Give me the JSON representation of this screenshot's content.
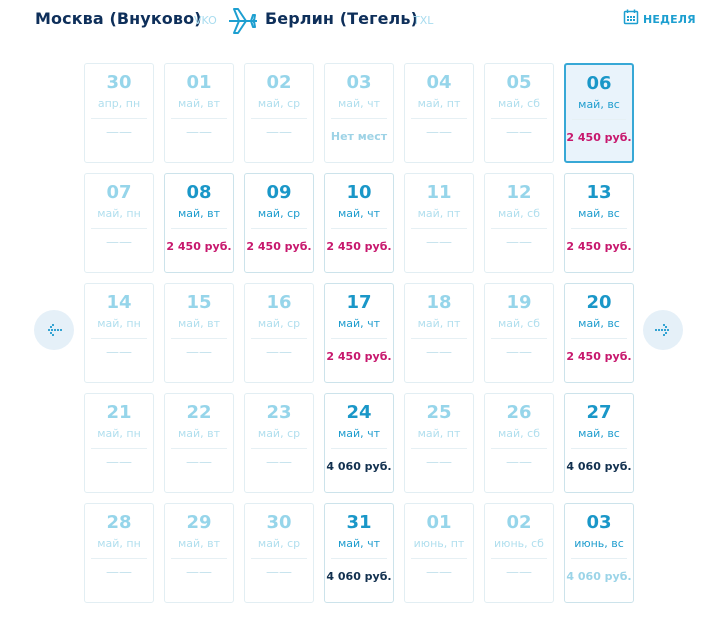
{
  "header": {
    "origin_city": "Москва (Внуково)",
    "origin_code": "VKO",
    "destination_city": "Берлин (Тегель)",
    "destination_code": "TXL",
    "week_label": "НЕДЕЛЯ"
  },
  "colors": {
    "price_available": "#c7176d",
    "price_regular": "#12304f",
    "accent": "#1d9fd0",
    "selected_border": "#37a8d6"
  },
  "rows": [
    [
      {
        "day": "30",
        "sub": "апр, пн",
        "price": "——",
        "state": "dash"
      },
      {
        "day": "01",
        "sub": "май, вт",
        "price": "——",
        "state": "dash"
      },
      {
        "day": "02",
        "sub": "май, ср",
        "price": "——",
        "state": "dash"
      },
      {
        "day": "03",
        "sub": "май, чт",
        "price": "Нет мест",
        "state": "none"
      },
      {
        "day": "04",
        "sub": "май, пт",
        "price": "——",
        "state": "dash"
      },
      {
        "day": "05",
        "sub": "май, сб",
        "price": "——",
        "state": "dash"
      },
      {
        "day": "06",
        "sub": "май, вс",
        "price": "2 450 руб.",
        "state": "red",
        "selected": true
      }
    ],
    [
      {
        "day": "07",
        "sub": "май, пн",
        "price": "——",
        "state": "dash"
      },
      {
        "day": "08",
        "sub": "май, вт",
        "price": "2 450 руб.",
        "state": "red"
      },
      {
        "day": "09",
        "sub": "май, ср",
        "price": "2 450 руб.",
        "state": "red"
      },
      {
        "day": "10",
        "sub": "май, чт",
        "price": "2 450 руб.",
        "state": "red"
      },
      {
        "day": "11",
        "sub": "май, пт",
        "price": "——",
        "state": "dash"
      },
      {
        "day": "12",
        "sub": "май, сб",
        "price": "——",
        "state": "dash"
      },
      {
        "day": "13",
        "sub": "май, вс",
        "price": "2 450 руб.",
        "state": "red"
      }
    ],
    [
      {
        "day": "14",
        "sub": "май, пн",
        "price": "——",
        "state": "dash"
      },
      {
        "day": "15",
        "sub": "май, вт",
        "price": "——",
        "state": "dash"
      },
      {
        "day": "16",
        "sub": "май, ср",
        "price": "——",
        "state": "dash"
      },
      {
        "day": "17",
        "sub": "май, чт",
        "price": "2 450 руб.",
        "state": "red"
      },
      {
        "day": "18",
        "sub": "май, пт",
        "price": "——",
        "state": "dash"
      },
      {
        "day": "19",
        "sub": "май, сб",
        "price": "——",
        "state": "dash"
      },
      {
        "day": "20",
        "sub": "май, вс",
        "price": "2 450 руб.",
        "state": "red"
      }
    ],
    [
      {
        "day": "21",
        "sub": "май, пн",
        "price": "——",
        "state": "dash"
      },
      {
        "day": "22",
        "sub": "май, вт",
        "price": "——",
        "state": "dash"
      },
      {
        "day": "23",
        "sub": "май, ср",
        "price": "——",
        "state": "dash"
      },
      {
        "day": "24",
        "sub": "май, чт",
        "price": "4 060 руб.",
        "state": "dark"
      },
      {
        "day": "25",
        "sub": "май, пт",
        "price": "——",
        "state": "dash"
      },
      {
        "day": "26",
        "sub": "май, сб",
        "price": "——",
        "state": "dash"
      },
      {
        "day": "27",
        "sub": "май, вс",
        "price": "4 060 руб.",
        "state": "dark"
      }
    ],
    [
      {
        "day": "28",
        "sub": "май, пн",
        "price": "——",
        "state": "dash"
      },
      {
        "day": "29",
        "sub": "май, вт",
        "price": "——",
        "state": "dash"
      },
      {
        "day": "30",
        "sub": "май, ср",
        "price": "——",
        "state": "dash"
      },
      {
        "day": "31",
        "sub": "май, чт",
        "price": "4 060 руб.",
        "state": "dark"
      },
      {
        "day": "01",
        "sub": "июнь, пт",
        "price": "——",
        "state": "dash"
      },
      {
        "day": "02",
        "sub": "июнь, сб",
        "price": "——",
        "state": "dash"
      },
      {
        "day": "03",
        "sub": "июнь, вс",
        "price": "4 060 руб.",
        "state": "light"
      }
    ]
  ],
  "icons": {
    "plane": "airplane-icon",
    "week": "calendar-icon",
    "prev": "arrow-left-icon",
    "next": "arrow-right-icon"
  }
}
